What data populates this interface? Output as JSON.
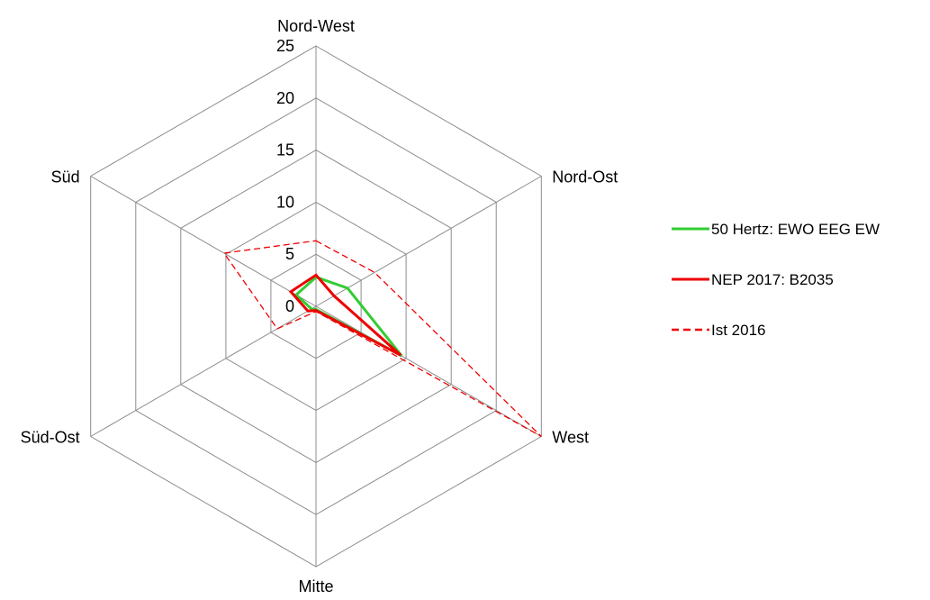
{
  "chart_data": {
    "type": "radar",
    "axes": [
      "Nord-West",
      "Nord-Ost",
      "West",
      "Mitte",
      "Süd-Ost",
      "Süd"
    ],
    "r_ticks": [
      0,
      5,
      10,
      15,
      20,
      25
    ],
    "r_range": [
      0,
      25
    ],
    "grid": true,
    "legend_position": "right",
    "series": [
      {
        "name": "50 Hertz: EWO EEG EW",
        "color": "#33cc33",
        "dash": "solid",
        "values": [
          2.8,
          3.5,
          9.5,
          0.3,
          0.5,
          2.2
        ]
      },
      {
        "name": "NEP 2017: B2035",
        "color": "#ee0000",
        "dash": "solid",
        "values": [
          3.0,
          2.0,
          9.4,
          0.4,
          0.9,
          2.8
        ]
      },
      {
        "name": "Ist 2016",
        "color": "#ee0000",
        "dash": "dashed",
        "values": [
          6.3,
          6.5,
          25.0,
          0.5,
          4.3,
          10.2
        ]
      }
    ]
  }
}
